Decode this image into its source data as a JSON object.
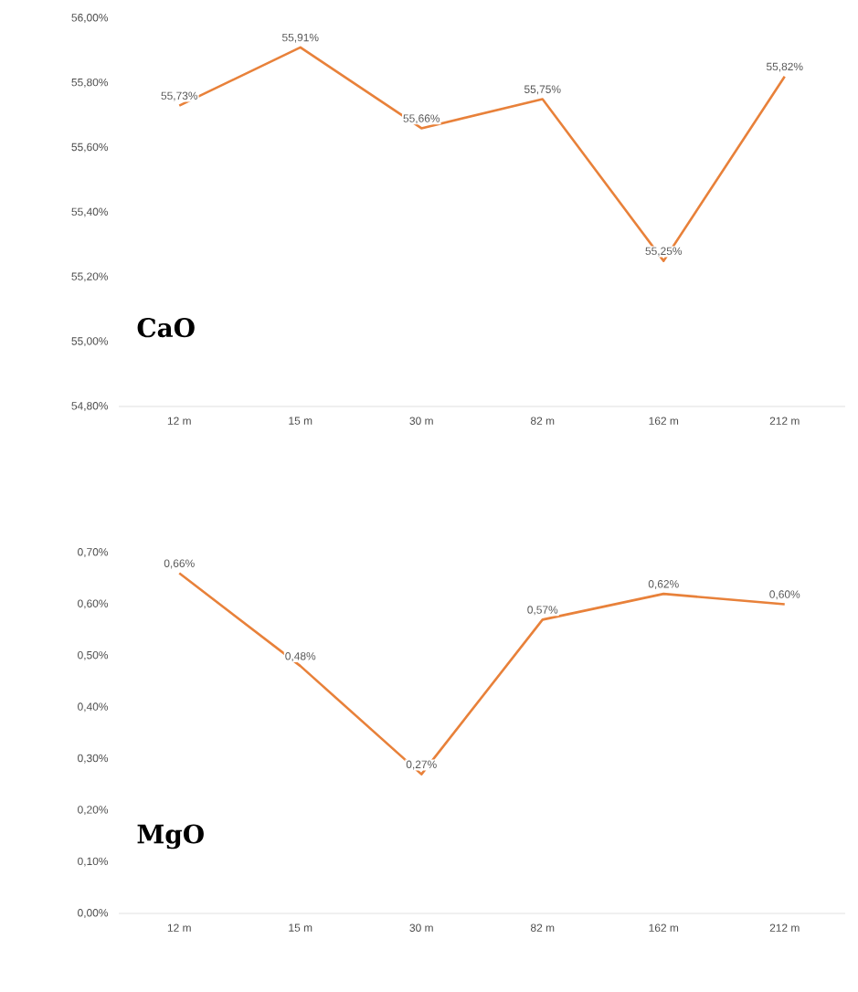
{
  "chart_data": [
    {
      "type": "line",
      "title": "CaO",
      "categories": [
        "12 m",
        "15 m",
        "30 m",
        "82 m",
        "162 m",
        "212 m"
      ],
      "values": [
        55.73,
        55.91,
        55.66,
        55.75,
        55.25,
        55.82
      ],
      "value_labels": [
        "55,73%",
        "55,91%",
        "55,66%",
        "55,75%",
        "55,25%",
        "55,82%"
      ],
      "color": "#e8813a",
      "ylim": [
        54.8,
        56.0
      ],
      "yticks": [
        {
          "value": 54.8,
          "label": "54,80%"
        },
        {
          "value": 55.0,
          "label": "55,00%"
        },
        {
          "value": 55.2,
          "label": "55,20%"
        },
        {
          "value": 55.4,
          "label": "55,40%"
        },
        {
          "value": 55.6,
          "label": "55,60%"
        },
        {
          "value": 55.8,
          "label": "55,80%"
        },
        {
          "value": 56.0,
          "label": "56,00%"
        }
      ]
    },
    {
      "type": "line",
      "title": "MgO",
      "categories": [
        "12 m",
        "15 m",
        "30 m",
        "82 m",
        "162 m",
        "212 m"
      ],
      "values": [
        0.66,
        0.48,
        0.27,
        0.57,
        0.62,
        0.6
      ],
      "value_labels": [
        "0,66%",
        "0,48%",
        "0,27%",
        "0,57%",
        "0,62%",
        "0,60%"
      ],
      "color": "#e8813a",
      "ylim": [
        0,
        0.7
      ],
      "yticks": [
        {
          "value": 0,
          "label": "0,00%"
        },
        {
          "value": 0.1,
          "label": "0,10%"
        },
        {
          "value": 0.2,
          "label": "0,20%"
        },
        {
          "value": 0.3,
          "label": "0,30%"
        },
        {
          "value": 0.4,
          "label": "0,40%"
        },
        {
          "value": 0.5,
          "label": "0,50%"
        },
        {
          "value": 0.6,
          "label": "0,60%"
        },
        {
          "value": 0.7,
          "label": "0,70%"
        }
      ]
    }
  ]
}
